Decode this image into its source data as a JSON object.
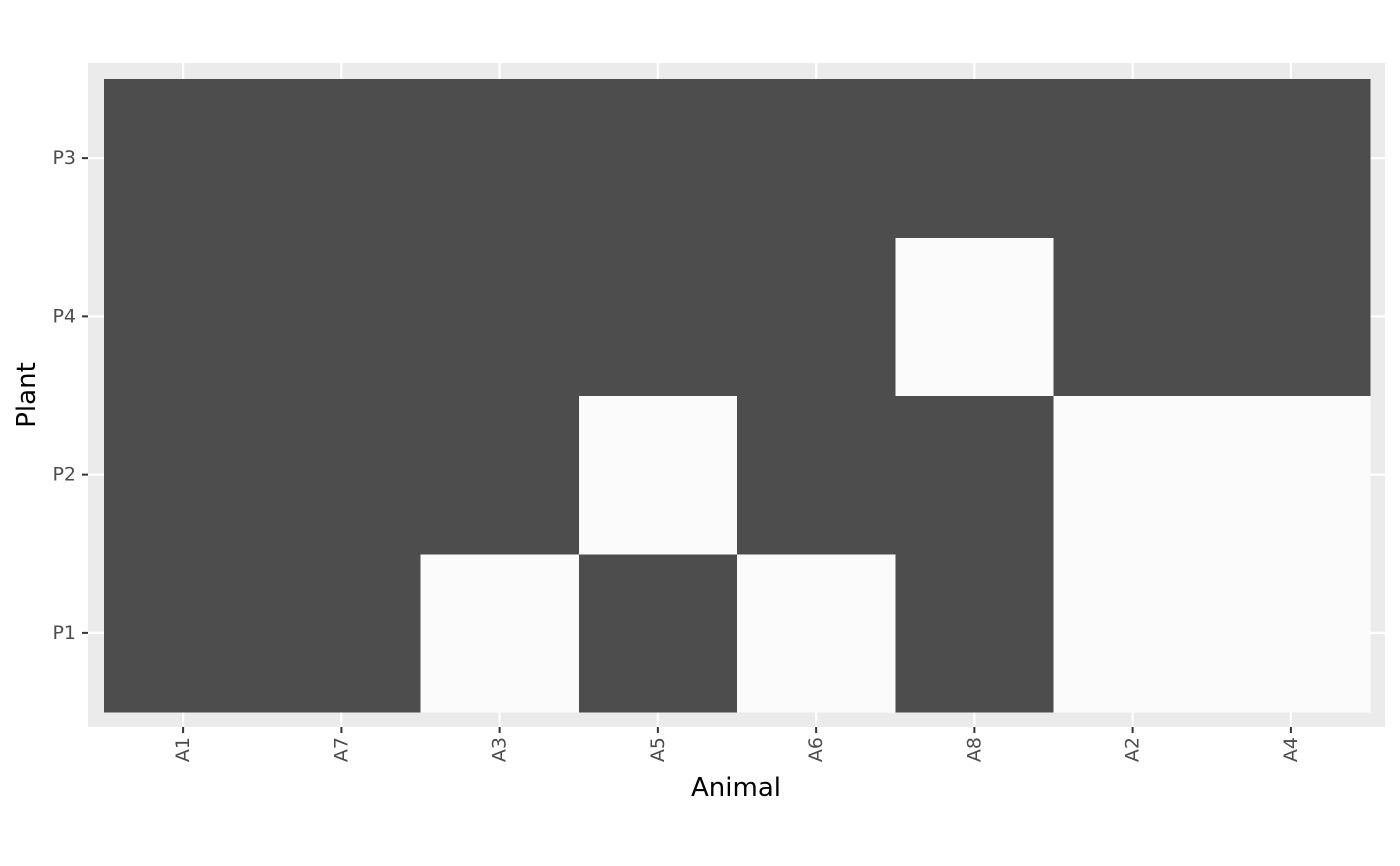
{
  "chart_data": {
    "type": "heatmap",
    "title": "",
    "xlabel": "Animal",
    "ylabel": "Plant",
    "x_categories": [
      "A1",
      "A7",
      "A3",
      "A5",
      "A6",
      "A8",
      "A2",
      "A4"
    ],
    "y_categories": [
      "P1",
      "P2",
      "P4",
      "P3"
    ],
    "values": [
      [
        1,
        1,
        0,
        1,
        0,
        1,
        0,
        0
      ],
      [
        1,
        1,
        1,
        0,
        1,
        1,
        0,
        0
      ],
      [
        1,
        1,
        1,
        1,
        1,
        0,
        1,
        1
      ],
      [
        1,
        1,
        1,
        1,
        1,
        1,
        1,
        1
      ]
    ],
    "value_colors": {
      "0": "#fbfbfb",
      "1": "#4d4d4d"
    },
    "grid": true,
    "legend": "none",
    "panel_background": "#ebebeb",
    "gridline_color": "#ffffff"
  }
}
